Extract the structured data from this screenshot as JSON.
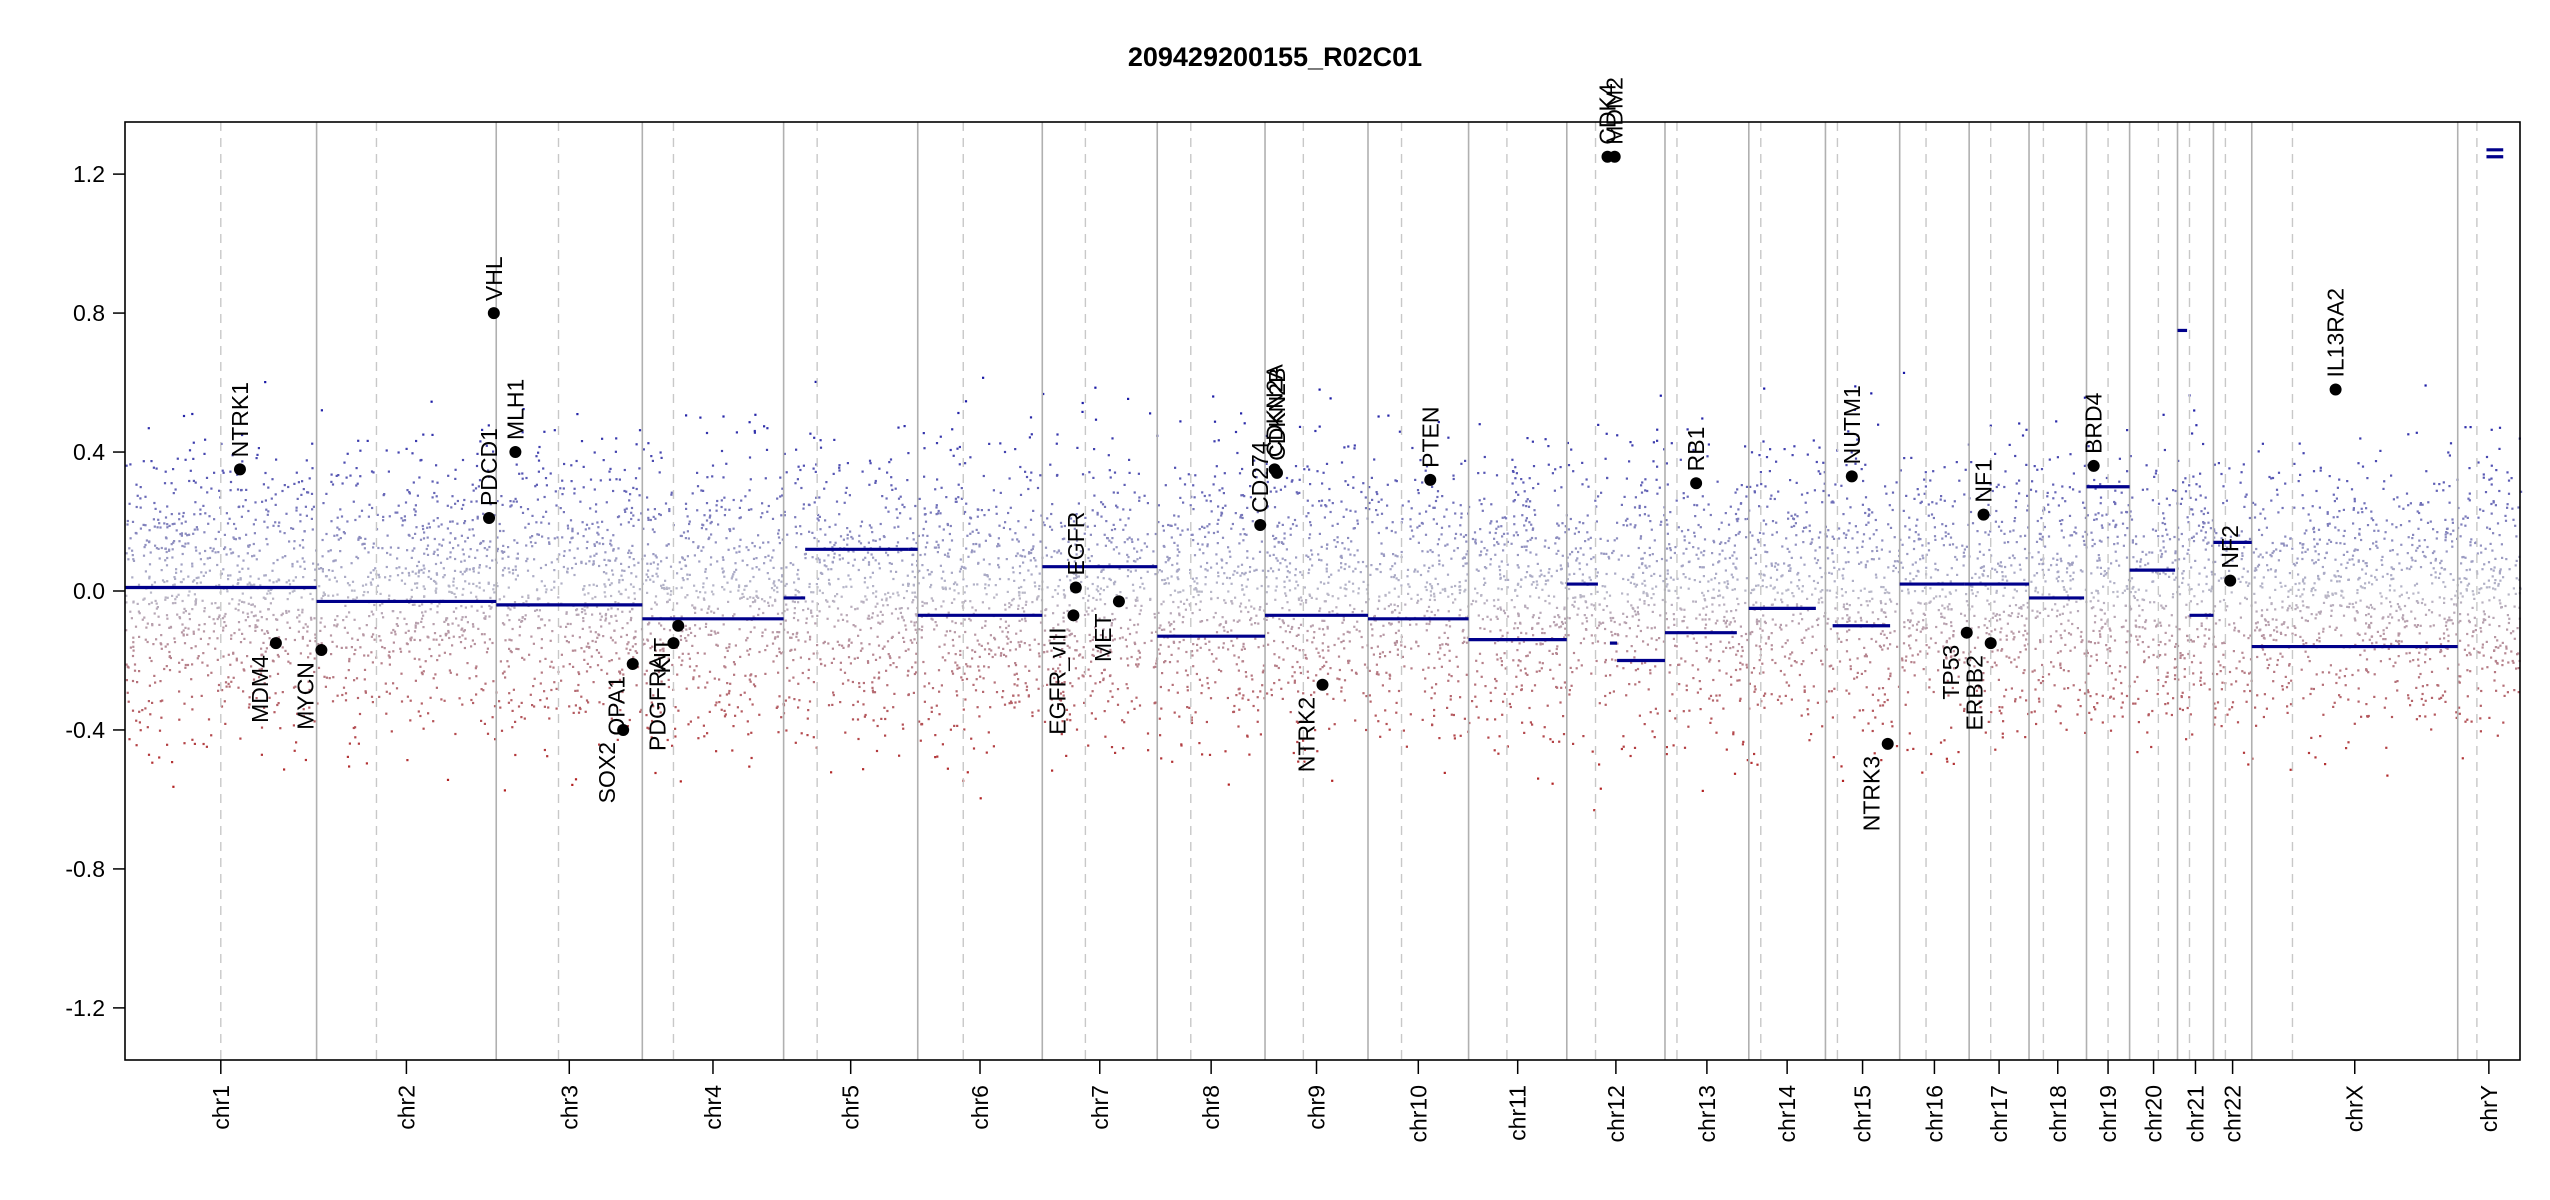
{
  "chart_data": {
    "type": "scatter",
    "title": "209429200155_R02C01",
    "xlabel": "",
    "ylabel": "",
    "ylim": [
      -1.35,
      1.35
    ],
    "y_ticks": [
      -1.2,
      -0.8,
      -0.4,
      0.0,
      0.4,
      0.8,
      1.2
    ],
    "y_tick_labels": [
      "-1.2",
      "-0.8",
      "-0.4",
      "0.0",
      "0.4",
      "0.8",
      "1.2"
    ],
    "grid": false,
    "colors": {
      "gain": "#1a1aa6",
      "loss": "#b22222",
      "neutral": "#b8b8c8",
      "segment": "#00008b",
      "gene_dot": "#000000",
      "boundary": "#b0b0b0"
    },
    "chromosomes": [
      {
        "name": "chr1",
        "span": [
          0.0,
          0.08
        ],
        "centromere": 0.04
      },
      {
        "name": "chr2",
        "span": [
          0.08,
          0.155
        ],
        "centromere": 0.105
      },
      {
        "name": "chr3",
        "span": [
          0.155,
          0.216
        ],
        "centromere": 0.181
      },
      {
        "name": "chr4",
        "span": [
          0.216,
          0.275
        ],
        "centromere": 0.229
      },
      {
        "name": "chr5",
        "span": [
          0.275,
          0.331
        ],
        "centromere": 0.289
      },
      {
        "name": "chr6",
        "span": [
          0.331,
          0.383
        ],
        "centromere": 0.35
      },
      {
        "name": "chr7",
        "span": [
          0.383,
          0.431
        ],
        "centromere": 0.401
      },
      {
        "name": "chr8",
        "span": [
          0.431,
          0.476
        ],
        "centromere": 0.445
      },
      {
        "name": "chr9",
        "span": [
          0.476,
          0.519
        ],
        "centromere": 0.492
      },
      {
        "name": "chr10",
        "span": [
          0.519,
          0.561
        ],
        "centromere": 0.533
      },
      {
        "name": "chr11",
        "span": [
          0.561,
          0.602
        ],
        "centromere": 0.577
      },
      {
        "name": "chr12",
        "span": [
          0.602,
          0.643
        ],
        "centromere": 0.614
      },
      {
        "name": "chr13",
        "span": [
          0.643,
          0.678
        ],
        "centromere": 0.648
      },
      {
        "name": "chr14",
        "span": [
          0.678,
          0.71
        ],
        "centromere": 0.683
      },
      {
        "name": "chr15",
        "span": [
          0.71,
          0.741
        ],
        "centromere": 0.715
      },
      {
        "name": "chr16",
        "span": [
          0.741,
          0.77
        ],
        "centromere": 0.752
      },
      {
        "name": "chr17",
        "span": [
          0.77,
          0.795
        ],
        "centromere": 0.779
      },
      {
        "name": "chr18",
        "span": [
          0.795,
          0.819
        ],
        "centromere": 0.801
      },
      {
        "name": "chr19",
        "span": [
          0.819,
          0.837
        ],
        "centromere": 0.828
      },
      {
        "name": "chr20",
        "span": [
          0.837,
          0.857
        ],
        "centromere": 0.849
      },
      {
        "name": "chr21",
        "span": [
          0.857,
          0.872
        ],
        "centromere": 0.862
      },
      {
        "name": "chr22",
        "span": [
          0.872,
          0.888
        ],
        "centromere": 0.877
      },
      {
        "name": "chrX",
        "span": [
          0.888,
          0.974
        ],
        "centromere": 0.905
      },
      {
        "name": "chrY",
        "span": [
          0.974,
          1.0
        ],
        "centromere": 0.982
      }
    ],
    "segments": [
      {
        "x": [
          0.0,
          0.08
        ],
        "y": 0.01
      },
      {
        "x": [
          0.08,
          0.155
        ],
        "y": -0.03
      },
      {
        "x": [
          0.155,
          0.216
        ],
        "y": -0.04
      },
      {
        "x": [
          0.216,
          0.275
        ],
        "y": -0.08
      },
      {
        "x": [
          0.275,
          0.284
        ],
        "y": -0.02
      },
      {
        "x": [
          0.284,
          0.327
        ],
        "y": 0.12
      },
      {
        "x": [
          0.327,
          0.331
        ],
        "y": 0.12
      },
      {
        "x": [
          0.331,
          0.383
        ],
        "y": -0.07
      },
      {
        "x": [
          0.383,
          0.431
        ],
        "y": 0.07
      },
      {
        "x": [
          0.431,
          0.476
        ],
        "y": -0.13
      },
      {
        "x": [
          0.476,
          0.519
        ],
        "y": -0.07
      },
      {
        "x": [
          0.519,
          0.561
        ],
        "y": -0.08
      },
      {
        "x": [
          0.561,
          0.602
        ],
        "y": -0.14
      },
      {
        "x": [
          0.602,
          0.615
        ],
        "y": 0.02
      },
      {
        "x": [
          0.62,
          0.623
        ],
        "y": -0.15
      },
      {
        "x": [
          0.623,
          0.643
        ],
        "y": -0.2
      },
      {
        "x": [
          0.643,
          0.673
        ],
        "y": -0.12
      },
      {
        "x": [
          0.678,
          0.706
        ],
        "y": -0.05
      },
      {
        "x": [
          0.713,
          0.737
        ],
        "y": -0.1
      },
      {
        "x": [
          0.741,
          0.768
        ],
        "y": 0.02
      },
      {
        "x": [
          0.768,
          0.795
        ],
        "y": 0.02
      },
      {
        "x": [
          0.795,
          0.818
        ],
        "y": -0.02
      },
      {
        "x": [
          0.819,
          0.837
        ],
        "y": 0.3
      },
      {
        "x": [
          0.837,
          0.856
        ],
        "y": 0.06
      },
      {
        "x": [
          0.857,
          0.861
        ],
        "y": 0.75
      },
      {
        "x": [
          0.862,
          0.872
        ],
        "y": -0.07
      },
      {
        "x": [
          0.872,
          0.888
        ],
        "y": 0.14
      },
      {
        "x": [
          0.888,
          0.974
        ],
        "y": -0.16
      },
      {
        "x": [
          0.986,
          0.993
        ],
        "y": 1.27
      },
      {
        "x": [
          0.986,
          0.993
        ],
        "y": 1.25
      }
    ],
    "genes": [
      {
        "name": "NTRK1",
        "x": 0.048,
        "y": 0.35,
        "label_dir": "up"
      },
      {
        "name": "MDM4",
        "x": 0.063,
        "y": -0.15,
        "label_dir": "down"
      },
      {
        "name": "MYCN",
        "x": 0.082,
        "y": -0.17,
        "label_dir": "down"
      },
      {
        "name": "PDCD1",
        "x": 0.152,
        "y": 0.21,
        "label_dir": "up"
      },
      {
        "name": "VHL",
        "x": 0.154,
        "y": 0.8,
        "label_dir": "up"
      },
      {
        "name": "MLH1",
        "x": 0.163,
        "y": 0.4,
        "label_dir": "up"
      },
      {
        "name": "SOX2",
        "x": 0.208,
        "y": -0.4,
        "label_dir": "down"
      },
      {
        "name": "OPA1",
        "x": 0.212,
        "y": -0.21,
        "label_dir": "down"
      },
      {
        "name": "PDGFRA",
        "x": 0.229,
        "y": -0.15,
        "label_dir": "down"
      },
      {
        "name": "KIT",
        "x": 0.231,
        "y": -0.1,
        "label_dir": "down"
      },
      {
        "name": "EGFR_vIII",
        "x": 0.396,
        "y": -0.07,
        "label_dir": "down"
      },
      {
        "name": "EGFR",
        "x": 0.397,
        "y": 0.01,
        "label_dir": "up"
      },
      {
        "name": "MET",
        "x": 0.415,
        "y": -0.03,
        "label_dir": "down"
      },
      {
        "name": "CD274",
        "x": 0.474,
        "y": 0.19,
        "label_dir": "up"
      },
      {
        "name": "CDKN2A",
        "x": 0.48,
        "y": 0.35,
        "label_dir": "up"
      },
      {
        "name": "CDKN2B",
        "x": 0.481,
        "y": 0.34,
        "label_dir": "up"
      },
      {
        "name": "NTRK2",
        "x": 0.5,
        "y": -0.27,
        "label_dir": "down"
      },
      {
        "name": "PTEN",
        "x": 0.545,
        "y": 0.32,
        "label_dir": "up"
      },
      {
        "name": "CDK4",
        "x": 0.619,
        "y": 1.25,
        "label_dir": "up"
      },
      {
        "name": "MDM2",
        "x": 0.622,
        "y": 1.25,
        "label_dir": "up"
      },
      {
        "name": "RB1",
        "x": 0.656,
        "y": 0.31,
        "label_dir": "up"
      },
      {
        "name": "NUTM1",
        "x": 0.721,
        "y": 0.33,
        "label_dir": "up"
      },
      {
        "name": "NTRK3",
        "x": 0.736,
        "y": -0.44,
        "label_dir": "down"
      },
      {
        "name": "TP53",
        "x": 0.769,
        "y": -0.12,
        "label_dir": "down"
      },
      {
        "name": "NF1",
        "x": 0.776,
        "y": 0.22,
        "label_dir": "up"
      },
      {
        "name": "ERBB2",
        "x": 0.779,
        "y": -0.15,
        "label_dir": "down"
      },
      {
        "name": "BRD4",
        "x": 0.822,
        "y": 0.36,
        "label_dir": "up"
      },
      {
        "name": "NF2",
        "x": 0.879,
        "y": 0.03,
        "label_dir": "up"
      },
      {
        "name": "IL13RA2",
        "x": 0.923,
        "y": 0.58,
        "label_dir": "up"
      }
    ]
  }
}
